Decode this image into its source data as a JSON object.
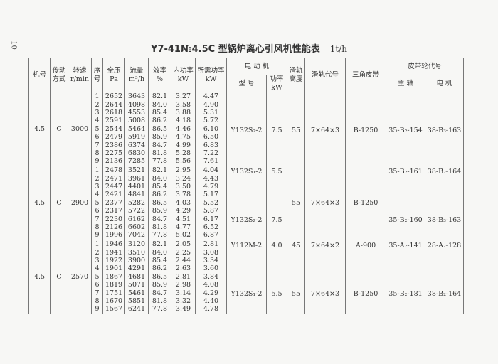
{
  "page_number": "- 10 -",
  "title": "Y7-41№4.5C 型锅炉离心引风机性能表",
  "title_unit": "1t/h",
  "headers": {
    "machine_no": "机号",
    "drive": "传动方式",
    "speed": "转速 r/min",
    "seq": "序号",
    "pressure": "全压 Pa",
    "flow": "流量 m³/h",
    "efficiency": "效率 %",
    "internal_power": "内功率 kW",
    "required_power": "所需功率 kW",
    "motor": "电 动 机",
    "motor_model": "型 号",
    "motor_power": "功率 kW",
    "rail_height": "滑轨高度",
    "rail_code": "滑轨代号",
    "v_belt": "三角皮带",
    "pulley": "皮带轮代号",
    "main_shaft": "主 轴",
    "motor_pulley": "电 机"
  },
  "groups": [
    {
      "machine_no": "4.5",
      "drive": "C",
      "speed": "3000",
      "seq": [
        "1",
        "2",
        "3",
        "4",
        "5",
        "6",
        "7",
        "8",
        "9"
      ],
      "pressure": [
        "2652",
        "2644",
        "2618",
        "2591",
        "2544",
        "2479",
        "2386",
        "2275",
        "2136"
      ],
      "flow": [
        "3643",
        "4098",
        "4553",
        "5008",
        "5464",
        "5919",
        "6374",
        "6830",
        "7285"
      ],
      "efficiency": [
        "82.1",
        "84.0",
        "85.4",
        "86.2",
        "86.5",
        "85.9",
        "84.7",
        "81.8",
        "77.8"
      ],
      "internal_power": [
        "3.27",
        "3.58",
        "3.88",
        "4.18",
        "4.46",
        "4.75",
        "4.99",
        "5.28",
        "5.56"
      ],
      "required_power": [
        "4.47",
        "4.90",
        "5.31",
        "5.72",
        "6.10",
        "6.50",
        "6.83",
        "7.22",
        "7.61"
      ],
      "motors": [
        {
          "model": "Y132S₂-2",
          "power": "7.5",
          "rail_height": "55",
          "rail_code": "7×64×3",
          "belt": "B-1250",
          "main_shaft": "35-B₂-154",
          "motor_pulley": "38-B₃-163"
        }
      ]
    },
    {
      "machine_no": "4.5",
      "drive": "C",
      "speed": "2900",
      "seq": [
        "1",
        "2",
        "3",
        "4",
        "5",
        "6",
        "7",
        "8",
        "9"
      ],
      "pressure": [
        "2478",
        "2471",
        "2447",
        "2421",
        "2377",
        "2317",
        "2230",
        "2126",
        "1996"
      ],
      "flow": [
        "3521",
        "3961",
        "4401",
        "4841",
        "5282",
        "5722",
        "6162",
        "6602",
        "7042"
      ],
      "efficiency": [
        "82.1",
        "84.0",
        "85.4",
        "86.2",
        "86.5",
        "85.9",
        "84.7",
        "81.8",
        "77.8"
      ],
      "internal_power": [
        "2.95",
        "3.24",
        "3.50",
        "3.78",
        "4.03",
        "4.29",
        "4.51",
        "4.77",
        "5.02"
      ],
      "required_power": [
        "4.04",
        "4.43",
        "4.79",
        "5.17",
        "5.52",
        "5.87",
        "6.17",
        "6.52",
        "6.87"
      ],
      "rail_height": "55",
      "rail_code": "7×64×3",
      "belt": "B-1250",
      "motors": [
        {
          "model": "Y132S₁-2",
          "power": "5.5",
          "main_shaft": "35-B₂-161",
          "motor_pulley": "38-B₂-164"
        },
        {
          "model": "Y132S₂-2",
          "power": "7.5",
          "main_shaft": "35-B₂-160",
          "motor_pulley": "38-B₃-163"
        }
      ]
    },
    {
      "machine_no": "4.5",
      "drive": "C",
      "speed": "2570",
      "seq": [
        "1",
        "2",
        "3",
        "4",
        "5",
        "6",
        "7",
        "8",
        "9"
      ],
      "pressure": [
        "1946",
        "1941",
        "1922",
        "1901",
        "1867",
        "1819",
        "1751",
        "1670",
        "1567"
      ],
      "flow": [
        "3120",
        "3510",
        "3900",
        "4291",
        "4681",
        "5071",
        "5461",
        "5851",
        "6241"
      ],
      "efficiency": [
        "82.1",
        "84.0",
        "85.4",
        "86.2",
        "86.5",
        "85.9",
        "84.7",
        "81.8",
        "77.8"
      ],
      "internal_power": [
        "2.05",
        "2.25",
        "2.44",
        "2.63",
        "2.81",
        "2.98",
        "3.14",
        "3.32",
        "3.49"
      ],
      "required_power": [
        "2.81",
        "3.08",
        "3.34",
        "3.60",
        "3.84",
        "4.08",
        "4.29",
        "4.40",
        "4.78"
      ],
      "motors": [
        {
          "model": "Y112M-2",
          "power": "4.0",
          "rail_height": "45",
          "rail_code": "7×64×2",
          "belt": "A-900",
          "main_shaft": "35-A₂-141",
          "motor_pulley": "28-A₂-128"
        },
        {
          "model": "Y132S₁-2",
          "power": "5.5",
          "rail_height": "55",
          "rail_code": "7×64×3",
          "belt": "B-1250",
          "main_shaft": "35-B₂-181",
          "motor_pulley": "38-B₂-164"
        }
      ]
    }
  ]
}
